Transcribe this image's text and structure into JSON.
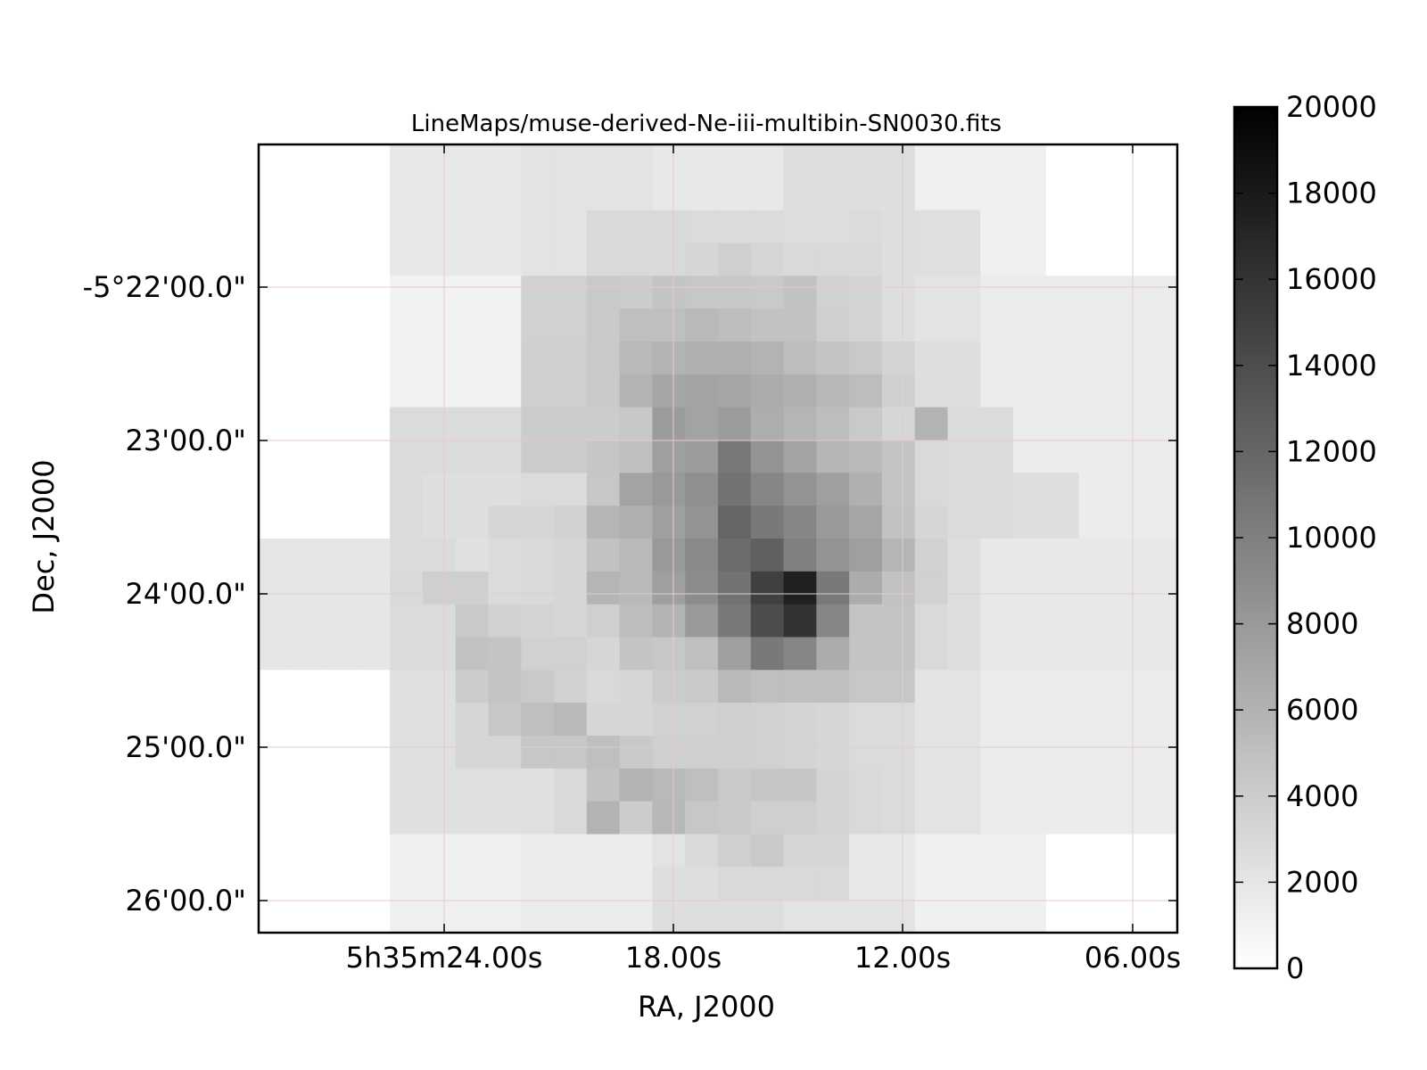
{
  "chart_data": {
    "type": "heatmap",
    "title": "LineMaps/muse-derived-Ne-iii-multibin-SN0030.fits",
    "xlabel": "RA, J2000",
    "ylabel": "Dec, J2000",
    "x_ticks": [
      "5h35m24.00s",
      "18.00s",
      "12.00s",
      "06.00s"
    ],
    "y_ticks": [
      "-5°22'00.0\"",
      "23'00.0\"",
      "24'00.0\"",
      "25'00.0\"",
      "26'00.0\""
    ],
    "colorbar": {
      "min": 0,
      "max": 20000,
      "ticks": [
        0,
        2000,
        4000,
        6000,
        8000,
        10000,
        12000,
        14000,
        16000,
        18000,
        20000
      ],
      "colormap": "gray_r"
    },
    "grid": true,
    "grid_color": "#e8c8c8",
    "grid_rows": 24,
    "grid_cols": 28,
    "values": [
      [
        0,
        0,
        0,
        0,
        1800,
        1800,
        1800,
        1800,
        2200,
        2200,
        2200,
        2200,
        1800,
        1800,
        1800,
        1800,
        2600,
        2600,
        2600,
        2600,
        1200,
        1200,
        1200,
        1200,
        0,
        0,
        0,
        0
      ],
      [
        0,
        0,
        0,
        0,
        1800,
        1800,
        1800,
        1800,
        2200,
        2200,
        2200,
        2200,
        1800,
        1800,
        1800,
        1800,
        2600,
        2600,
        2600,
        2600,
        1200,
        1200,
        1200,
        1200,
        0,
        0,
        0,
        0
      ],
      [
        0,
        0,
        0,
        0,
        1800,
        1800,
        1800,
        1800,
        2200,
        2200,
        3000,
        3000,
        3000,
        2800,
        2800,
        2800,
        2600,
        2600,
        2800,
        2600,
        2500,
        2500,
        1200,
        1200,
        0,
        0,
        0,
        0
      ],
      [
        0,
        0,
        0,
        0,
        1800,
        1800,
        1800,
        1800,
        2200,
        2200,
        3000,
        3000,
        3000,
        3200,
        3800,
        3200,
        3000,
        3000,
        3000,
        2600,
        2500,
        2500,
        1200,
        1200,
        0,
        0,
        0,
        0
      ],
      [
        0,
        0,
        0,
        0,
        1000,
        1000,
        1000,
        1000,
        3600,
        3600,
        4200,
        4000,
        4600,
        4400,
        4400,
        4200,
        4800,
        3600,
        3400,
        2600,
        2200,
        2200,
        1500,
        1500,
        1500,
        1500,
        1500,
        1500
      ],
      [
        0,
        0,
        0,
        0,
        1000,
        1000,
        1000,
        1000,
        3600,
        3600,
        4200,
        5000,
        5000,
        5500,
        5200,
        4800,
        4800,
        3800,
        3400,
        2600,
        2200,
        2200,
        1500,
        1500,
        1500,
        1500,
        1500,
        1500
      ],
      [
        0,
        0,
        0,
        0,
        1000,
        1000,
        1000,
        1000,
        3800,
        3800,
        4200,
        5500,
        6000,
        6200,
        6200,
        6000,
        5200,
        4600,
        4200,
        3400,
        2600,
        2600,
        1500,
        1500,
        1500,
        1500,
        1500,
        1500
      ],
      [
        0,
        0,
        0,
        0,
        1000,
        1000,
        1000,
        1000,
        3800,
        3800,
        4200,
        6000,
        7000,
        7200,
        7000,
        6500,
        6200,
        5600,
        5200,
        3800,
        2600,
        2600,
        1500,
        1500,
        1500,
        1500,
        1500,
        1500
      ],
      [
        0,
        0,
        0,
        0,
        2800,
        2800,
        2800,
        2800,
        4000,
        4000,
        4000,
        4400,
        7800,
        7200,
        7800,
        6400,
        5800,
        5200,
        4200,
        3200,
        6000,
        2800,
        2800,
        1500,
        1500,
        1500,
        1500,
        1500
      ],
      [
        0,
        0,
        0,
        0,
        2800,
        2800,
        2800,
        2800,
        4000,
        4000,
        4500,
        5000,
        7500,
        7800,
        10500,
        8500,
        7200,
        5800,
        5400,
        4600,
        3000,
        2800,
        2800,
        1500,
        1500,
        1500,
        1500,
        1500
      ],
      [
        0,
        0,
        0,
        0,
        2800,
        2600,
        2600,
        2600,
        2800,
        2800,
        4400,
        7200,
        8000,
        8800,
        11000,
        9500,
        8500,
        7500,
        6200,
        4600,
        3000,
        2800,
        2800,
        2600,
        2600,
        1500,
        1500,
        1500
      ],
      [
        0,
        0,
        0,
        0,
        2800,
        2600,
        2600,
        3200,
        3200,
        3500,
        5800,
        6200,
        7500,
        8500,
        12000,
        10500,
        9500,
        8000,
        7000,
        4800,
        3200,
        2800,
        2800,
        2600,
        2600,
        1500,
        1500,
        1500
      ],
      [
        2000,
        2000,
        2000,
        2000,
        2800,
        2800,
        2400,
        2800,
        3000,
        3200,
        4800,
        5500,
        8000,
        9200,
        11500,
        12500,
        10000,
        8500,
        7500,
        5800,
        3600,
        2600,
        1800,
        1800,
        1800,
        1800,
        1800,
        1800
      ],
      [
        2000,
        2000,
        2000,
        2000,
        3000,
        3800,
        3800,
        2800,
        3000,
        3200,
        5800,
        5500,
        7500,
        9000,
        11000,
        15000,
        17500,
        10500,
        6500,
        4800,
        3600,
        2600,
        1800,
        1800,
        1800,
        1800,
        1800,
        1800
      ],
      [
        2000,
        2000,
        2000,
        2000,
        2800,
        2800,
        4200,
        3600,
        3400,
        3200,
        3800,
        5200,
        6000,
        8000,
        10500,
        14000,
        16000,
        9500,
        4600,
        4600,
        3000,
        2600,
        1800,
        1800,
        1800,
        1800,
        1800,
        1800
      ],
      [
        2000,
        2000,
        2000,
        2000,
        2800,
        2800,
        4800,
        4600,
        3600,
        3600,
        3200,
        4600,
        4400,
        5000,
        7500,
        10500,
        9500,
        6500,
        4600,
        4600,
        3000,
        2600,
        1800,
        1800,
        1800,
        1800,
        1800,
        1800
      ],
      [
        0,
        0,
        0,
        0,
        2400,
        2400,
        4000,
        4600,
        4200,
        3600,
        3000,
        3200,
        4000,
        4200,
        5500,
        5000,
        5000,
        5000,
        4400,
        4400,
        2200,
        2200,
        1500,
        1500,
        1500,
        1500,
        1500,
        1500
      ],
      [
        0,
        0,
        0,
        0,
        2400,
        2400,
        3200,
        4400,
        5000,
        5500,
        3200,
        3200,
        3600,
        3600,
        3800,
        3600,
        3400,
        3200,
        2800,
        2800,
        2200,
        2200,
        1500,
        1500,
        1500,
        1500,
        1500,
        1500
      ],
      [
        0,
        0,
        0,
        0,
        2400,
        2400,
        3200,
        3200,
        4400,
        4400,
        5000,
        4200,
        3800,
        3800,
        3800,
        3600,
        3400,
        3200,
        2800,
        2800,
        2200,
        2200,
        1500,
        1500,
        1500,
        1500,
        1500,
        1500
      ],
      [
        0,
        0,
        0,
        0,
        2400,
        2400,
        2400,
        2400,
        2400,
        3000,
        4800,
        6000,
        5500,
        5000,
        4200,
        4500,
        4500,
        3400,
        3000,
        2800,
        2200,
        2200,
        1500,
        1500,
        1500,
        1500,
        1500,
        1500
      ],
      [
        0,
        0,
        0,
        0,
        2400,
        2400,
        2400,
        2400,
        2400,
        3000,
        6000,
        4000,
        5600,
        4400,
        4200,
        3800,
        3800,
        3400,
        3000,
        2800,
        2200,
        2200,
        1500,
        1500,
        1500,
        1500,
        1500,
        1500
      ],
      [
        0,
        0,
        0,
        0,
        1200,
        1200,
        1200,
        1200,
        1500,
        1500,
        1500,
        1500,
        2200,
        3000,
        3800,
        4200,
        3200,
        3200,
        1800,
        1800,
        1200,
        1200,
        1200,
        1200,
        0,
        0,
        0,
        0
      ],
      [
        0,
        0,
        0,
        0,
        1200,
        1200,
        1200,
        1200,
        1500,
        1500,
        1500,
        1500,
        2600,
        2600,
        3000,
        3000,
        3000,
        3000,
        1800,
        1800,
        1200,
        1200,
        1200,
        1200,
        0,
        0,
        0,
        0
      ],
      [
        0,
        0,
        0,
        0,
        1200,
        1200,
        1200,
        1200,
        1500,
        1500,
        1500,
        1500,
        2600,
        2600,
        2600,
        2600,
        2200,
        2200,
        2200,
        2200,
        1200,
        1200,
        1200,
        1200,
        0,
        0,
        0,
        0
      ]
    ]
  }
}
